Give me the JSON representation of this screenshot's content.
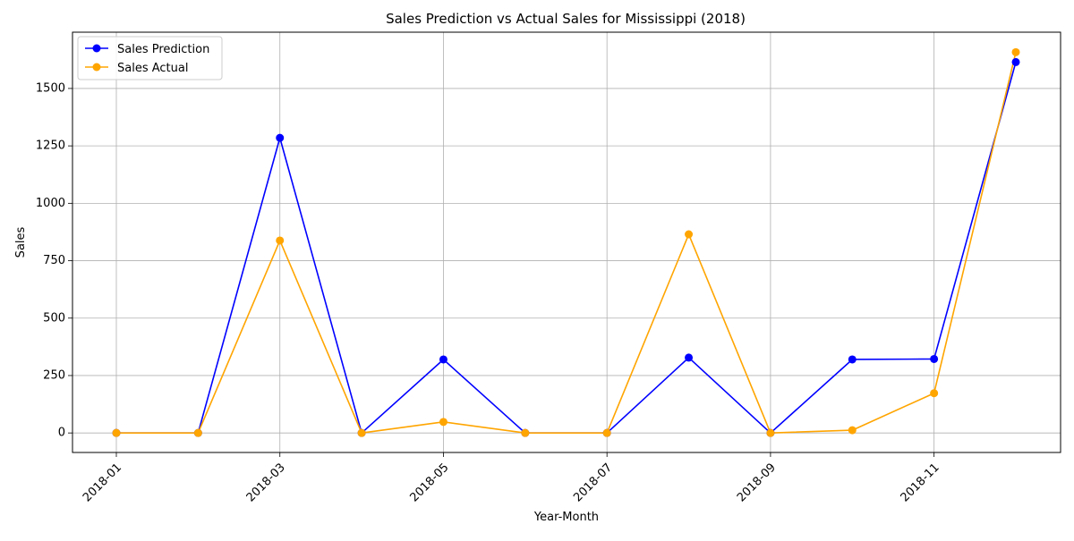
{
  "chart_data": {
    "type": "line",
    "title": "Sales Prediction vs Actual Sales for Mississippi (2018)",
    "xlabel": "Year-Month",
    "ylabel": "Sales",
    "x": [
      "2018-01",
      "2018-02",
      "2018-03",
      "2018-04",
      "2018-05",
      "2018-06",
      "2018-07",
      "2018-08",
      "2018-09",
      "2018-10",
      "2018-11",
      "2018-12"
    ],
    "x_ticks": [
      "2018-01",
      "2018-03",
      "2018-05",
      "2018-07",
      "2018-09",
      "2018-11"
    ],
    "y_ticks": [
      0,
      250,
      500,
      750,
      1000,
      1250,
      1500
    ],
    "ylim": [
      -85,
      1745
    ],
    "grid": true,
    "legend_position": "top-left",
    "series": [
      {
        "name": "Sales Prediction",
        "color": "#0000ff",
        "values": [
          0,
          0,
          1285,
          0,
          320,
          0,
          0,
          328,
          0,
          320,
          322,
          1615
        ]
      },
      {
        "name": "Sales Actual",
        "color": "#ffa500",
        "values": [
          0,
          0,
          838,
          0,
          48,
          0,
          0,
          865,
          0,
          12,
          173,
          1658
        ]
      }
    ]
  }
}
